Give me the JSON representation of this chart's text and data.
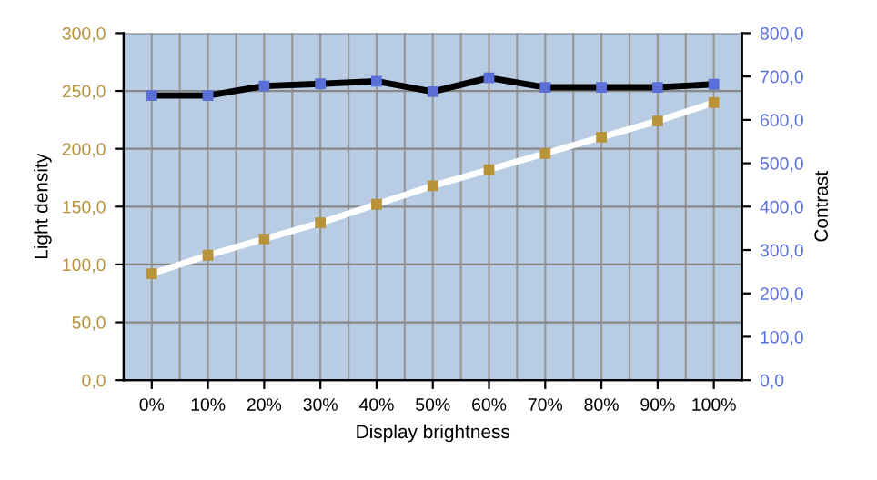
{
  "chart_data": {
    "type": "line",
    "xlabel": "Display brightness",
    "ylabel": "Light density",
    "y2label": "Contrast",
    "categories": [
      "0%",
      "10%",
      "20%",
      "30%",
      "40%",
      "50%",
      "60%",
      "70%",
      "80%",
      "90%",
      "100%"
    ],
    "series": [
      {
        "color": "#ffffff",
        "colors": [
          "#b8933a",
          "#b8933a",
          "#b8933a",
          "#b8933a",
          "#b8933a",
          "#b8933a",
          "#b8933a",
          "#b8933a",
          "#b8933a",
          "#b8933a",
          "#b8933a"
        ],
        "values": [
          92,
          108,
          122,
          136,
          152,
          168,
          182,
          196,
          210,
          224,
          240
        ]
      },
      {
        "color": "#000000",
        "colors": [
          "#5a6fd8",
          "#5a6fd8",
          "#5a6fd8",
          "#5a6fd8",
          "#5a6fd8",
          "#5a6fd8",
          "#5a6fd8",
          "#5a6fd8",
          "#5a6fd8",
          "#5a6fd8",
          "#5a6fd8"
        ],
        "axis": "y2",
        "values": [
          656,
          656,
          678,
          683,
          689,
          665,
          697,
          675,
          675,
          675,
          682
        ]
      }
    ],
    "ylim": [
      0,
      300
    ],
    "yticks": [
      {
        "value": 0,
        "label": "0,0"
      },
      {
        "value": 50,
        "label": "50,0"
      },
      {
        "value": 100,
        "label": "100,0"
      },
      {
        "value": 150,
        "label": "150,0"
      },
      {
        "value": 200,
        "label": "200,0"
      },
      {
        "value": 250,
        "label": "250,0"
      },
      {
        "value": 300,
        "label": "300,0"
      }
    ],
    "y2lim": [
      0,
      800
    ],
    "y2ticks": [
      {
        "value": 0,
        "label": "0,0"
      },
      {
        "value": 100,
        "label": "100,0"
      },
      {
        "value": 200,
        "label": "200,0"
      },
      {
        "value": 300,
        "label": "300,0"
      },
      {
        "value": 400,
        "label": "400,0"
      },
      {
        "value": 500,
        "label": "500,0"
      },
      {
        "value": 600,
        "label": "600,0"
      },
      {
        "value": 700,
        "label": "700,0"
      },
      {
        "value": 800,
        "label": "800,0"
      }
    ],
    "grid": true,
    "marker": "square",
    "line_style": "solid"
  }
}
